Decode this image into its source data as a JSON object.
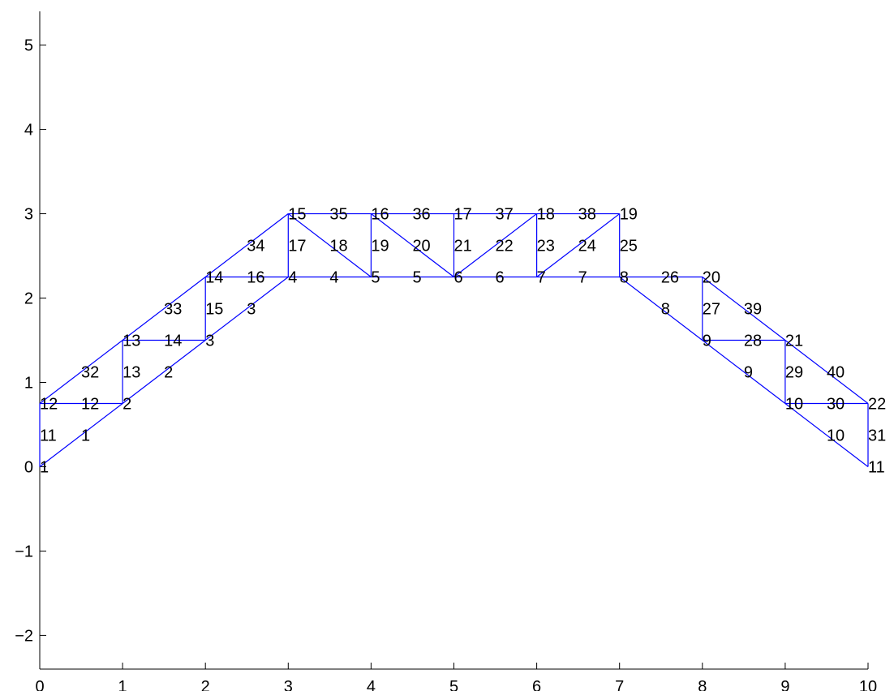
{
  "chart_data": {
    "type": "diagram",
    "title": "",
    "xlabel": "",
    "ylabel": "",
    "xlim": [
      0,
      10
    ],
    "ylim": [
      -2.4,
      5.4
    ],
    "xticks": [
      0,
      1,
      2,
      3,
      4,
      5,
      6,
      7,
      8,
      9,
      10
    ],
    "yticks": [
      -2,
      -1,
      0,
      1,
      2,
      3,
      4,
      5
    ],
    "xtick_labels": [
      "0",
      "1",
      "2",
      "3",
      "4",
      "5",
      "6",
      "7",
      "8",
      "9",
      "10"
    ],
    "ytick_labels": [
      "−2",
      "−1",
      "0",
      "1",
      "2",
      "3",
      "4",
      "5"
    ],
    "line_color": "#0000ff",
    "nodes": [
      {
        "id": "1",
        "x": 0,
        "y": 0
      },
      {
        "id": "2",
        "x": 1,
        "y": 0.75
      },
      {
        "id": "3",
        "x": 2,
        "y": 1.5
      },
      {
        "id": "4",
        "x": 3,
        "y": 2.25
      },
      {
        "id": "5",
        "x": 4,
        "y": 2.25
      },
      {
        "id": "6",
        "x": 5,
        "y": 2.25
      },
      {
        "id": "7",
        "x": 6,
        "y": 2.25
      },
      {
        "id": "8",
        "x": 7,
        "y": 2.25
      },
      {
        "id": "9",
        "x": 8,
        "y": 1.5
      },
      {
        "id": "10",
        "x": 9,
        "y": 0.75
      },
      {
        "id": "11",
        "x": 10,
        "y": 0
      },
      {
        "id": "12",
        "x": 0,
        "y": 0.75
      },
      {
        "id": "13",
        "x": 1,
        "y": 1.5
      },
      {
        "id": "14",
        "x": 2,
        "y": 2.25
      },
      {
        "id": "15",
        "x": 3,
        "y": 3
      },
      {
        "id": "16",
        "x": 4,
        "y": 3
      },
      {
        "id": "17",
        "x": 5,
        "y": 3
      },
      {
        "id": "18",
        "x": 6,
        "y": 3
      },
      {
        "id": "19",
        "x": 7,
        "y": 3
      },
      {
        "id": "20",
        "x": 8,
        "y": 2.25
      },
      {
        "id": "21",
        "x": 9,
        "y": 1.5
      },
      {
        "id": "22",
        "x": 10,
        "y": 0.75
      }
    ],
    "members": [
      {
        "id": "1",
        "from": "1",
        "to": "2"
      },
      {
        "id": "2",
        "from": "2",
        "to": "3"
      },
      {
        "id": "3",
        "from": "3",
        "to": "4"
      },
      {
        "id": "4",
        "from": "4",
        "to": "5"
      },
      {
        "id": "5",
        "from": "5",
        "to": "6"
      },
      {
        "id": "6",
        "from": "6",
        "to": "7"
      },
      {
        "id": "7",
        "from": "7",
        "to": "8"
      },
      {
        "id": "8",
        "from": "8",
        "to": "9"
      },
      {
        "id": "9",
        "from": "9",
        "to": "10"
      },
      {
        "id": "10",
        "from": "10",
        "to": "11"
      },
      {
        "id": "11",
        "from": "1",
        "to": "12"
      },
      {
        "id": "12",
        "from": "12",
        "to": "2"
      },
      {
        "id": "13",
        "from": "2",
        "to": "13"
      },
      {
        "id": "14",
        "from": "13",
        "to": "3"
      },
      {
        "id": "15",
        "from": "3",
        "to": "14"
      },
      {
        "id": "16",
        "from": "14",
        "to": "4"
      },
      {
        "id": "17",
        "from": "4",
        "to": "15"
      },
      {
        "id": "18",
        "from": "15",
        "to": "5"
      },
      {
        "id": "19",
        "from": "5",
        "to": "16"
      },
      {
        "id": "20",
        "from": "16",
        "to": "6"
      },
      {
        "id": "21",
        "from": "6",
        "to": "17"
      },
      {
        "id": "22",
        "from": "6",
        "to": "18"
      },
      {
        "id": "23",
        "from": "7",
        "to": "18"
      },
      {
        "id": "24",
        "from": "7",
        "to": "19"
      },
      {
        "id": "25",
        "from": "8",
        "to": "19"
      },
      {
        "id": "26",
        "from": "8",
        "to": "20"
      },
      {
        "id": "27",
        "from": "9",
        "to": "20"
      },
      {
        "id": "28",
        "from": "9",
        "to": "21"
      },
      {
        "id": "29",
        "from": "10",
        "to": "21"
      },
      {
        "id": "30",
        "from": "10",
        "to": "22"
      },
      {
        "id": "31",
        "from": "11",
        "to": "22"
      },
      {
        "id": "32",
        "from": "12",
        "to": "13"
      },
      {
        "id": "33",
        "from": "13",
        "to": "14"
      },
      {
        "id": "34",
        "from": "14",
        "to": "15"
      },
      {
        "id": "35",
        "from": "15",
        "to": "16"
      },
      {
        "id": "36",
        "from": "16",
        "to": "17"
      },
      {
        "id": "37",
        "from": "17",
        "to": "18"
      },
      {
        "id": "38",
        "from": "18",
        "to": "19"
      },
      {
        "id": "39",
        "from": "20",
        "to": "21"
      },
      {
        "id": "40",
        "from": "21",
        "to": "22"
      }
    ]
  }
}
